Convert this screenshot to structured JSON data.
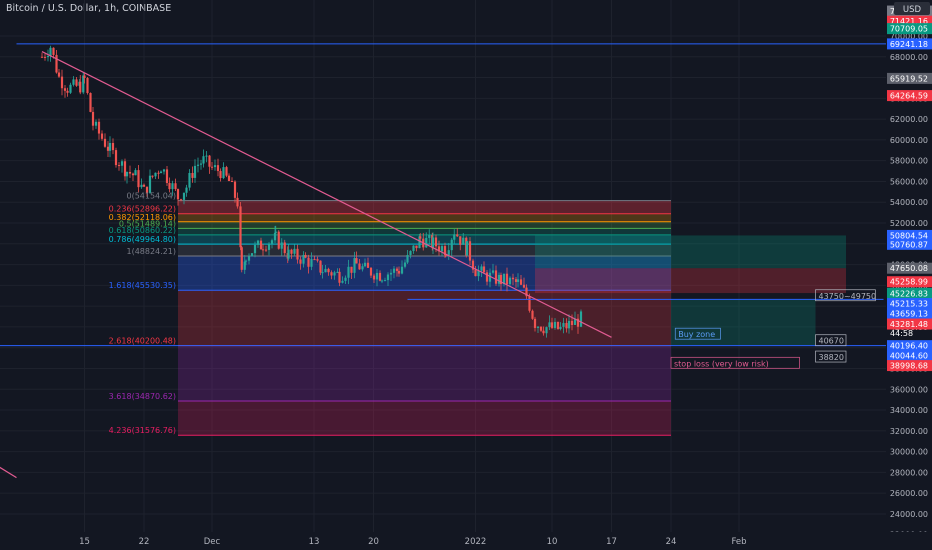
{
  "symbol_title": "Bitcoin / U.S. Dollar, 1h, COINBASE",
  "currency_badge": "USD",
  "countdown": "44:58",
  "colors": {
    "bg": "#131722",
    "grid": "#1e222d",
    "text": "#b2b5be",
    "up": "#26a69a",
    "down": "#ef5350",
    "blue": "#2962ff",
    "pink": "#e15b91"
  },
  "chart_data": {
    "type": "candlestick",
    "title": "Bitcoin / U.S. Dollar, 1h, COINBASE",
    "ylim": [
      21000,
      73000
    ],
    "y_ticks": [
      22000,
      24000,
      26000,
      28000,
      30000,
      32000,
      34000,
      36000,
      38000,
      40000,
      42000,
      44000,
      46000,
      48000,
      50000,
      52000,
      54000,
      56000,
      58000,
      60000,
      62000,
      64000,
      66000,
      68000,
      70000
    ],
    "y_tick_labels": [
      "22000.00",
      "24000.00",
      "26000.00",
      "28000.00",
      "30000.00",
      "32000.00",
      "34000.00",
      "36000.00",
      "38000.00",
      "40000.00",
      "42000.00",
      "44000.00",
      "46000.00",
      "48000.00",
      "50000.00",
      "52000.00",
      "54000.00",
      "56000.00",
      "58000.00",
      "60000.00",
      "62000.00",
      "64000.00",
      "66000.00",
      "68000.00",
      "70000.00"
    ],
    "x_ticks": [
      {
        "label": "15",
        "x": 10
      },
      {
        "label": "22",
        "x": 17
      },
      {
        "label": "Dec",
        "x": 25
      },
      {
        "label": "13",
        "x": 37
      },
      {
        "label": "20",
        "x": 44
      },
      {
        "label": "2022",
        "x": 56
      },
      {
        "label": "10",
        "x": 65
      },
      {
        "label": "17",
        "x": 72
      },
      {
        "label": "24",
        "x": 79
      },
      {
        "label": "Feb",
        "x": 87
      }
    ],
    "x_range": [
      5,
      98
    ],
    "price_path": [
      [
        5,
        68000
      ],
      [
        6,
        69000
      ],
      [
        7,
        66000
      ],
      [
        8,
        65000
      ],
      [
        9.5,
        65200
      ],
      [
        10,
        65800
      ],
      [
        11,
        61500
      ],
      [
        13,
        59000
      ],
      [
        15,
        57000
      ],
      [
        16,
        56500
      ],
      [
        17,
        55000
      ],
      [
        18,
        56500
      ],
      [
        19,
        57500
      ],
      [
        20,
        56000
      ],
      [
        21,
        54500
      ],
      [
        22,
        55500
      ],
      [
        23,
        57500
      ],
      [
        24,
        58000
      ],
      [
        25,
        57300
      ],
      [
        26,
        57000
      ],
      [
        27,
        56000
      ],
      [
        28,
        54000
      ],
      [
        28.5,
        47000
      ],
      [
        29,
        49000
      ],
      [
        31,
        50000
      ],
      [
        32.5,
        50500
      ],
      [
        34,
        49000
      ],
      [
        36,
        48500
      ],
      [
        38,
        47500
      ],
      [
        40,
        47000
      ],
      [
        42,
        48000
      ],
      [
        43,
        47500
      ],
      [
        45,
        47000
      ],
      [
        47,
        47500
      ],
      [
        48,
        48500
      ],
      [
        49.5,
        50500
      ],
      [
        51,
        50000
      ],
      [
        52.5,
        49500
      ],
      [
        53.5,
        51300
      ],
      [
        55,
        49500
      ],
      [
        56,
        47500
      ],
      [
        57,
        47000
      ],
      [
        59,
        46500
      ],
      [
        61,
        46200
      ],
      [
        62,
        45000
      ],
      [
        63,
        42400
      ],
      [
        64,
        42000
      ],
      [
        65,
        41900
      ],
      [
        66,
        41800
      ],
      [
        67,
        42200
      ],
      [
        68.5,
        42800
      ]
    ],
    "lines": [
      {
        "kind": "trendline",
        "from": [
          5,
          68500
        ],
        "to": [
          72,
          41000
        ],
        "color": "#e15b91"
      },
      {
        "kind": "trendline",
        "from": [
          0,
          28500
        ],
        "to": [
          2,
          27500
        ],
        "color": "#e15b91"
      },
      {
        "kind": "horizontal",
        "price": 69241.18,
        "from_x": 2,
        "color": "#2962ff"
      }
    ],
    "fib_levels": [
      {
        "ratio": "0",
        "price": 54154,
        "label": "0(54154.04)",
        "color": "#787b86"
      },
      {
        "ratio": "0.236",
        "price": 52896.22,
        "label": "0.236(52896.22)",
        "color": "#f23645"
      },
      {
        "ratio": "0.382",
        "price": 52118.06,
        "label": "0.382(52118.06)",
        "color": "#ff9800"
      },
      {
        "ratio": "0.5",
        "price": 51489.14,
        "label": "0.5(51489.14)",
        "color": "#4caf50"
      },
      {
        "ratio": "0.618",
        "price": 50860.22,
        "label": "0.618(50860.22)",
        "color": "#089981"
      },
      {
        "ratio": "0.786",
        "price": 49964.8,
        "label": "0.786(49964.80)",
        "color": "#00bcd4"
      },
      {
        "ratio": "1",
        "price": 48824.21,
        "label": "1(48824.21)",
        "color": "#787b86"
      },
      {
        "ratio": "1.618",
        "price": 45530.35,
        "label": "1.618(45530.35)",
        "color": "#2962ff"
      },
      {
        "ratio": "2.618",
        "price": 40200.48,
        "label": "2.618(40200.48)",
        "color": "#f23645"
      },
      {
        "ratio": "3.618",
        "price": 34870.62,
        "label": "3.618(34870.62)",
        "color": "#9c27b0"
      },
      {
        "ratio": "4.236",
        "price": 31576.76,
        "label": "4.236(31576.76)",
        "color": "#e91e63"
      }
    ],
    "fib_x_range": [
      21,
      79
    ],
    "position_tool": {
      "x_range": [
        63,
        104
      ],
      "entry": 47650.08,
      "target": 50804.54,
      "stop": 45258.99
    },
    "range_lines": [
      {
        "price": 44650,
        "x_range": [
          48,
          104
        ],
        "color": "#2962ff"
      },
      {
        "price": 40196.4,
        "x_range": [
          0,
          110
        ],
        "color": "#2962ff"
      }
    ],
    "buy_zone_box": {
      "x_range": [
        79,
        96
      ],
      "top": 44650,
      "bottom": 40196.4
    },
    "annotations": [
      {
        "text": "Buy zone",
        "price": 41300,
        "x": 79.5,
        "color": "#5b9cf6"
      },
      {
        "text": "40670",
        "price": 40670,
        "x": 96,
        "color": "#b2b5be"
      },
      {
        "text": "38820",
        "price": 39100,
        "x": 96,
        "color": "#b2b5be"
      },
      {
        "text": "stop loss (very low risk)",
        "price": 38500,
        "x": 79,
        "color": "#e15b91"
      },
      {
        "text": "43750~49750",
        "price": 45000,
        "x": 96,
        "color": "#b2b5be"
      }
    ],
    "price_tags": [
      {
        "text": "72000.00",
        "price": 72400,
        "bg": "#787b86"
      },
      {
        "text": "71421.16",
        "price": 71421.16,
        "bg": "#f23645"
      },
      {
        "text": "70709.05",
        "price": 70709.05,
        "bg": "#089981"
      },
      {
        "text": "69241.18",
        "price": 69241.18,
        "bg": "#2962ff"
      },
      {
        "text": "65919.52",
        "price": 65919.52,
        "bg": "#5d606b"
      },
      {
        "text": "64264.59",
        "price": 64264.59,
        "bg": "#f23645"
      },
      {
        "text": "50804.54",
        "price": 50804.54,
        "bg": "#2962ff"
      },
      {
        "text": "50760.87",
        "price": 49950,
        "bg": "#2962ff"
      },
      {
        "text": "47650.08",
        "price": 47650.08,
        "bg": "#5d606b"
      },
      {
        "text": "45258.99",
        "price": 46350,
        "bg": "#f23645"
      },
      {
        "text": "45226.83",
        "price": 45230,
        "bg": "#089981"
      },
      {
        "text": "45215.33",
        "price": 44250,
        "bg": "#2962ff"
      },
      {
        "text": "43659.13",
        "price": 43300,
        "bg": "#2962ff"
      },
      {
        "text": "43281.48",
        "price": 42280,
        "bg": "#f23645"
      },
      {
        "text": "40196.40",
        "price": 40196.4,
        "bg": "#2962ff"
      },
      {
        "text": "40044.60",
        "price": 39240,
        "bg": "#2962ff"
      },
      {
        "text": "38998.68",
        "price": 38280,
        "bg": "#f23645"
      }
    ]
  }
}
